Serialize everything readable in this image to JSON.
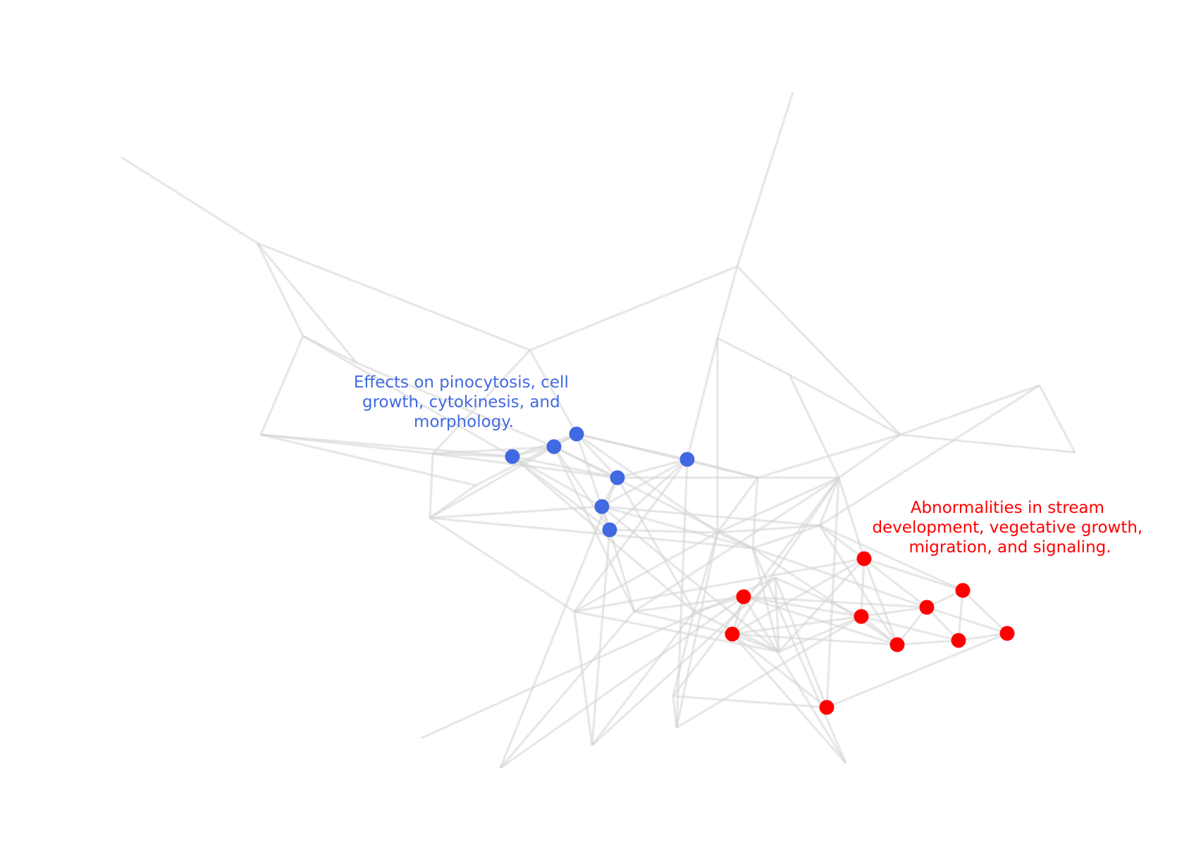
{
  "clusters": [
    {
      "id": "blue",
      "color": "#4169e1",
      "label_lines": [
        "Effects on pinocytosis, cell",
        "growth, cytokinesis, and",
        "morphology."
      ]
    },
    {
      "id": "red",
      "color": "#ff0000",
      "label_lines": [
        "Abnormalities in stream",
        "development, vegetative growth,",
        "migration, and signaling."
      ]
    }
  ],
  "node_colors": {
    "highlight_blue": "#4169e1",
    "highlight_red": "#ff0000",
    "edge": "#d3d3d3"
  }
}
